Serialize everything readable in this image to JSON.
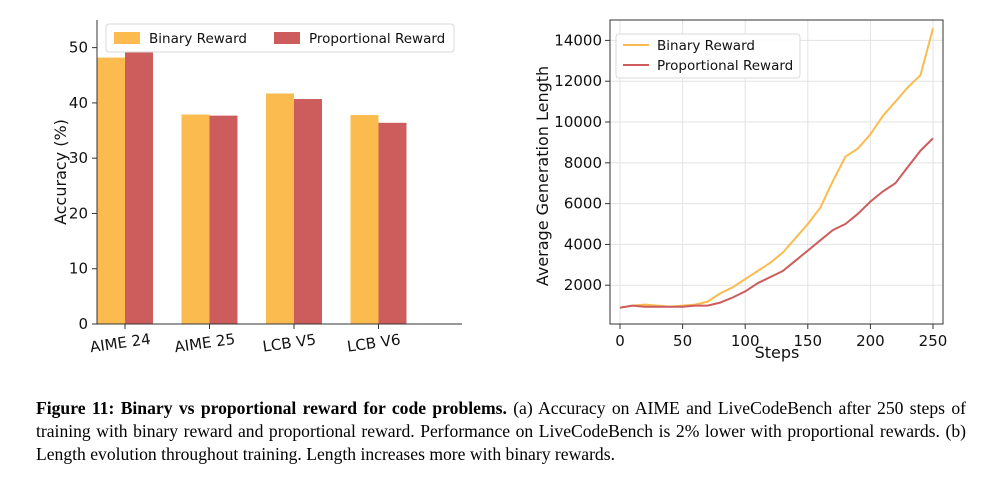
{
  "chart_data": [
    {
      "type": "bar",
      "categories": [
        "AIME 24",
        "AIME 25",
        "LCB V5",
        "LCB V6"
      ],
      "series": [
        {
          "name": "Binary Reward",
          "color": "#FBBB4E",
          "values": [
            48.2,
            37.9,
            41.7,
            37.8
          ]
        },
        {
          "name": "Proportional Reward",
          "color": "#CD5C5C",
          "values": [
            49.4,
            37.7,
            40.7,
            36.4
          ]
        }
      ],
      "xlabel": "",
      "ylabel": "Accuracy (%)",
      "ylim": [
        0,
        55
      ],
      "yticks": [
        "0",
        "10",
        "20",
        "30",
        "40",
        "50"
      ],
      "grid": false,
      "legend": "top"
    },
    {
      "type": "line",
      "xlabel": "Steps",
      "ylabel": "Average Generation Length",
      "xlim": [
        -8,
        258
      ],
      "ylim": [
        100,
        15000
      ],
      "xticks": [
        "0",
        "50",
        "100",
        "150",
        "200",
        "250"
      ],
      "yticks": [
        "2000",
        "4000",
        "6000",
        "8000",
        "10000",
        "12000",
        "14000"
      ],
      "grid": true,
      "legend": "top-left",
      "series": [
        {
          "name": "Binary Reward",
          "color": "#FBBB4E",
          "x": [
            0,
            10,
            20,
            30,
            40,
            50,
            60,
            70,
            80,
            90,
            100,
            110,
            120,
            130,
            140,
            150,
            160,
            170,
            180,
            190,
            200,
            210,
            220,
            230,
            240,
            250
          ],
          "y": [
            900,
            1000,
            1050,
            1000,
            950,
            1000,
            1050,
            1200,
            1600,
            1900,
            2300,
            2700,
            3100,
            3600,
            4300,
            5000,
            5800,
            7100,
            8300,
            8700,
            9400,
            10300,
            11000,
            11700,
            12300,
            14600
          ]
        },
        {
          "name": "Proportional Reward",
          "color": "#CD5C5C",
          "x": [
            0,
            10,
            20,
            30,
            40,
            50,
            60,
            70,
            80,
            90,
            100,
            110,
            120,
            130,
            140,
            150,
            160,
            170,
            180,
            190,
            200,
            210,
            220,
            230,
            240,
            250
          ],
          "y": [
            900,
            1000,
            950,
            950,
            950,
            950,
            1000,
            1000,
            1150,
            1400,
            1700,
            2100,
            2400,
            2700,
            3200,
            3700,
            4200,
            4700,
            5000,
            5500,
            6100,
            6600,
            7000,
            7800,
            8600,
            9200
          ]
        }
      ]
    }
  ],
  "caption": {
    "label": "Figure 11:",
    "title": "Binary vs proportional reward for code problems.",
    "text": "(a) Accuracy on AIME and LiveCodeBench after 250 steps of training with binary reward and proportional reward. Performance on LiveCodeBench is 2% lower with proportional rewards. (b) Length evolution throughout training. Length increases more with binary rewards."
  }
}
